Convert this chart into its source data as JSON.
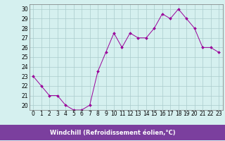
{
  "x": [
    0,
    1,
    2,
    3,
    4,
    5,
    6,
    7,
    8,
    9,
    10,
    11,
    12,
    13,
    14,
    15,
    16,
    17,
    18,
    19,
    20,
    21,
    22,
    23
  ],
  "y": [
    23.0,
    22.0,
    21.0,
    21.0,
    20.0,
    19.5,
    19.5,
    20.0,
    23.5,
    25.5,
    27.5,
    26.0,
    27.5,
    27.0,
    27.0,
    28.0,
    29.5,
    29.0,
    30.0,
    29.0,
    28.0,
    26.0,
    26.0,
    25.5
  ],
  "line_color": "#990099",
  "marker": "D",
  "marker_size": 2.0,
  "bg_color": "#d5f0ef",
  "grid_color": "#aacccc",
  "xlabel": "Windchill (Refroidissement éolien,°C)",
  "xlabel_bg": "#7b3f9e",
  "xlabel_fg": "#ffffff",
  "yticks": [
    20,
    21,
    22,
    23,
    24,
    25,
    26,
    27,
    28,
    29,
    30
  ],
  "xticks": [
    0,
    1,
    2,
    3,
    4,
    5,
    6,
    7,
    8,
    9,
    10,
    11,
    12,
    13,
    14,
    15,
    16,
    17,
    18,
    19,
    20,
    21,
    22,
    23
  ],
  "xlim": [
    -0.5,
    23.5
  ],
  "ylim": [
    19.5,
    30.5
  ],
  "tick_label_fontsize": 5.5,
  "xlabel_fontsize": 6.0
}
